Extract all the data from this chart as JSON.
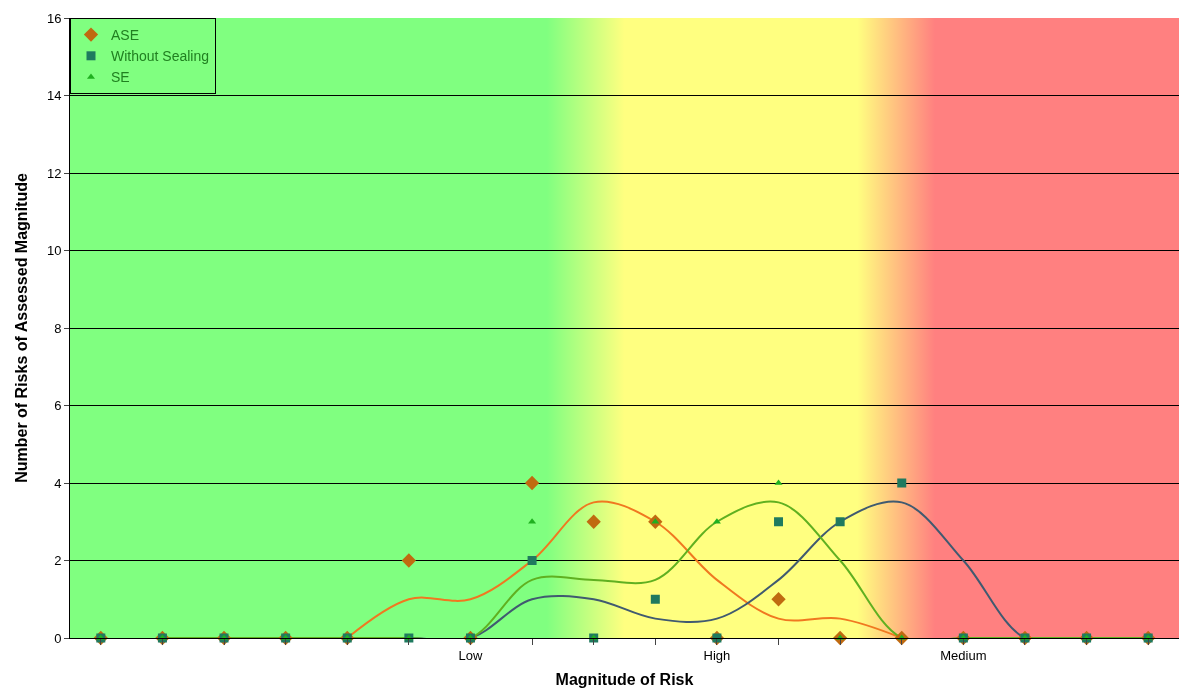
{
  "chart_data": {
    "type": "scatter",
    "xlabel": "Magnitude of Risk",
    "ylabel": "Number of Risks of Assessed Magnitude",
    "categories": [
      null,
      null,
      null,
      null,
      null,
      null,
      "Low",
      null,
      null,
      null,
      "High",
      null,
      null,
      null,
      "Medium",
      null,
      null,
      null
    ],
    "ylim": [
      0,
      16
    ],
    "yticks": [
      0,
      2,
      4,
      6,
      8,
      10,
      12,
      14,
      16
    ],
    "grid": "y",
    "legend": "top left",
    "series": [
      {
        "name": "ASE",
        "marker": "diamond",
        "color": "#c06a10",
        "values": [
          0,
          0,
          0,
          0,
          0,
          2,
          0,
          4,
          3,
          3,
          0,
          1,
          0,
          0,
          0,
          0,
          0,
          0
        ]
      },
      {
        "name": "Without Sealing",
        "marker": "square",
        "color": "#1f7a5f",
        "values": [
          0,
          0,
          0,
          0,
          0,
          0,
          0,
          2,
          0,
          1,
          0,
          3,
          3,
          4,
          0,
          0,
          0,
          0
        ]
      },
      {
        "name": "SE",
        "marker": "triangle",
        "color": "#20b020",
        "values": [
          0,
          0,
          0,
          0,
          0,
          0,
          0,
          3,
          0,
          3,
          3,
          4,
          0,
          0,
          0,
          0,
          0,
          0
        ]
      },
      {
        "type": "line",
        "color": "#f07820",
        "values": [
          null,
          null,
          null,
          null,
          0,
          1,
          1,
          2,
          3.5,
          3,
          1.5,
          0.5,
          0.5,
          0,
          null,
          null,
          null,
          null
        ]
      },
      {
        "type": "line",
        "color": "#405a70",
        "values": [
          null,
          0,
          0,
          0,
          0,
          0,
          0,
          1,
          1,
          0.5,
          0.5,
          1.5,
          3,
          3.5,
          2,
          0,
          0,
          0
        ]
      },
      {
        "type": "line",
        "color": "#60b020",
        "values": [
          null,
          0,
          0,
          0,
          0,
          0,
          0,
          1.5,
          1.5,
          1.5,
          3,
          3.5,
          2,
          0,
          0,
          0,
          0,
          0
        ]
      }
    ]
  }
}
